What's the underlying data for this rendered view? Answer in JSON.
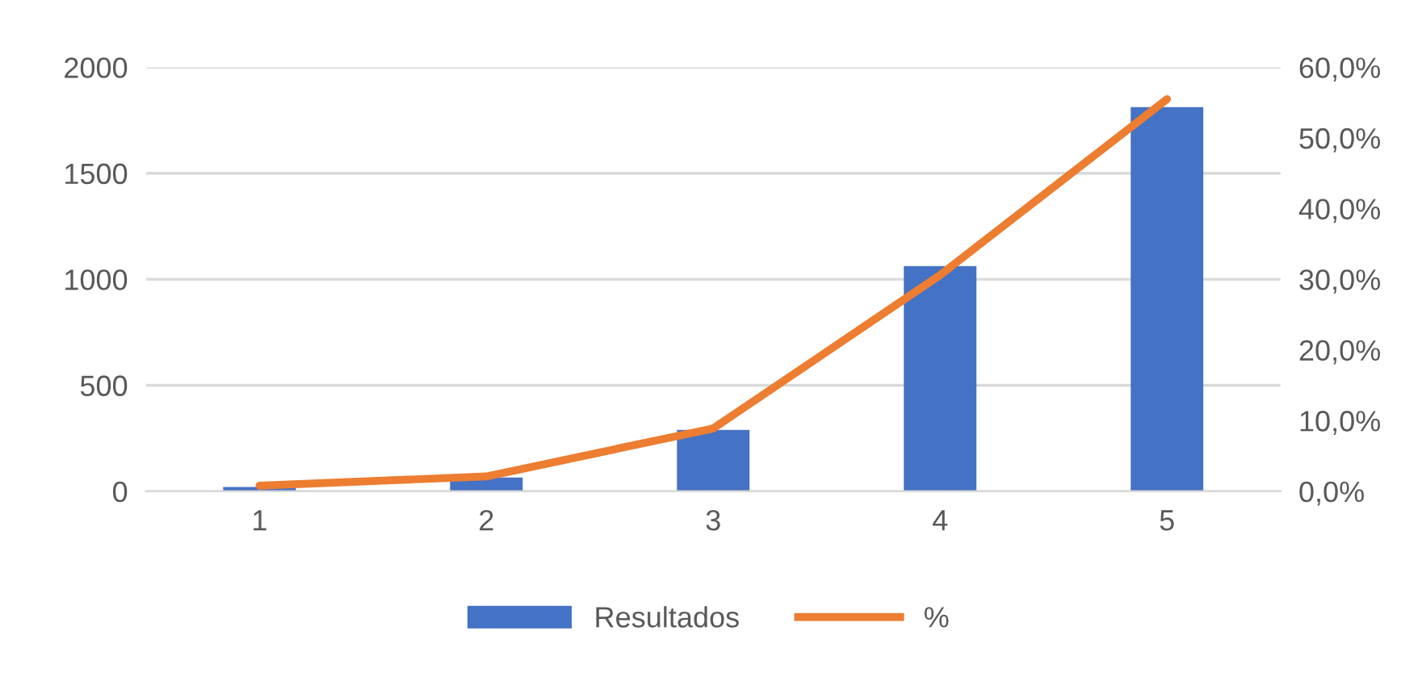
{
  "chart_data": {
    "type": "bar",
    "categories": [
      "1",
      "2",
      "3",
      "4",
      "5"
    ],
    "series": [
      {
        "name": "Resultados",
        "color": "#4472c4",
        "values": [
          20,
          65,
          290,
          1062,
          1812
        ]
      },
      {
        "name": "%",
        "type": "line",
        "axis": "y2",
        "color": "#ed7d31",
        "values": [
          0.8,
          2.1,
          8.9,
          30.6,
          55.5
        ]
      }
    ],
    "ylim": [
      0,
      2000
    ],
    "yticks": [
      0,
      500,
      1000,
      1500,
      2000
    ],
    "y2lim": [
      0,
      60
    ],
    "y2ticks": [
      {
        "value": 0,
        "label": "0,0%"
      },
      {
        "value": 10,
        "label": "10,0%"
      },
      {
        "value": 20,
        "label": "20,0%"
      },
      {
        "value": 30,
        "label": "30,0%"
      },
      {
        "value": 40,
        "label": "40,0%"
      },
      {
        "value": 50,
        "label": "50,0%"
      },
      {
        "value": 60,
        "label": "60,0%"
      }
    ],
    "grid": "y",
    "legend": "bottom",
    "marker": "none",
    "line_style": "solid"
  }
}
